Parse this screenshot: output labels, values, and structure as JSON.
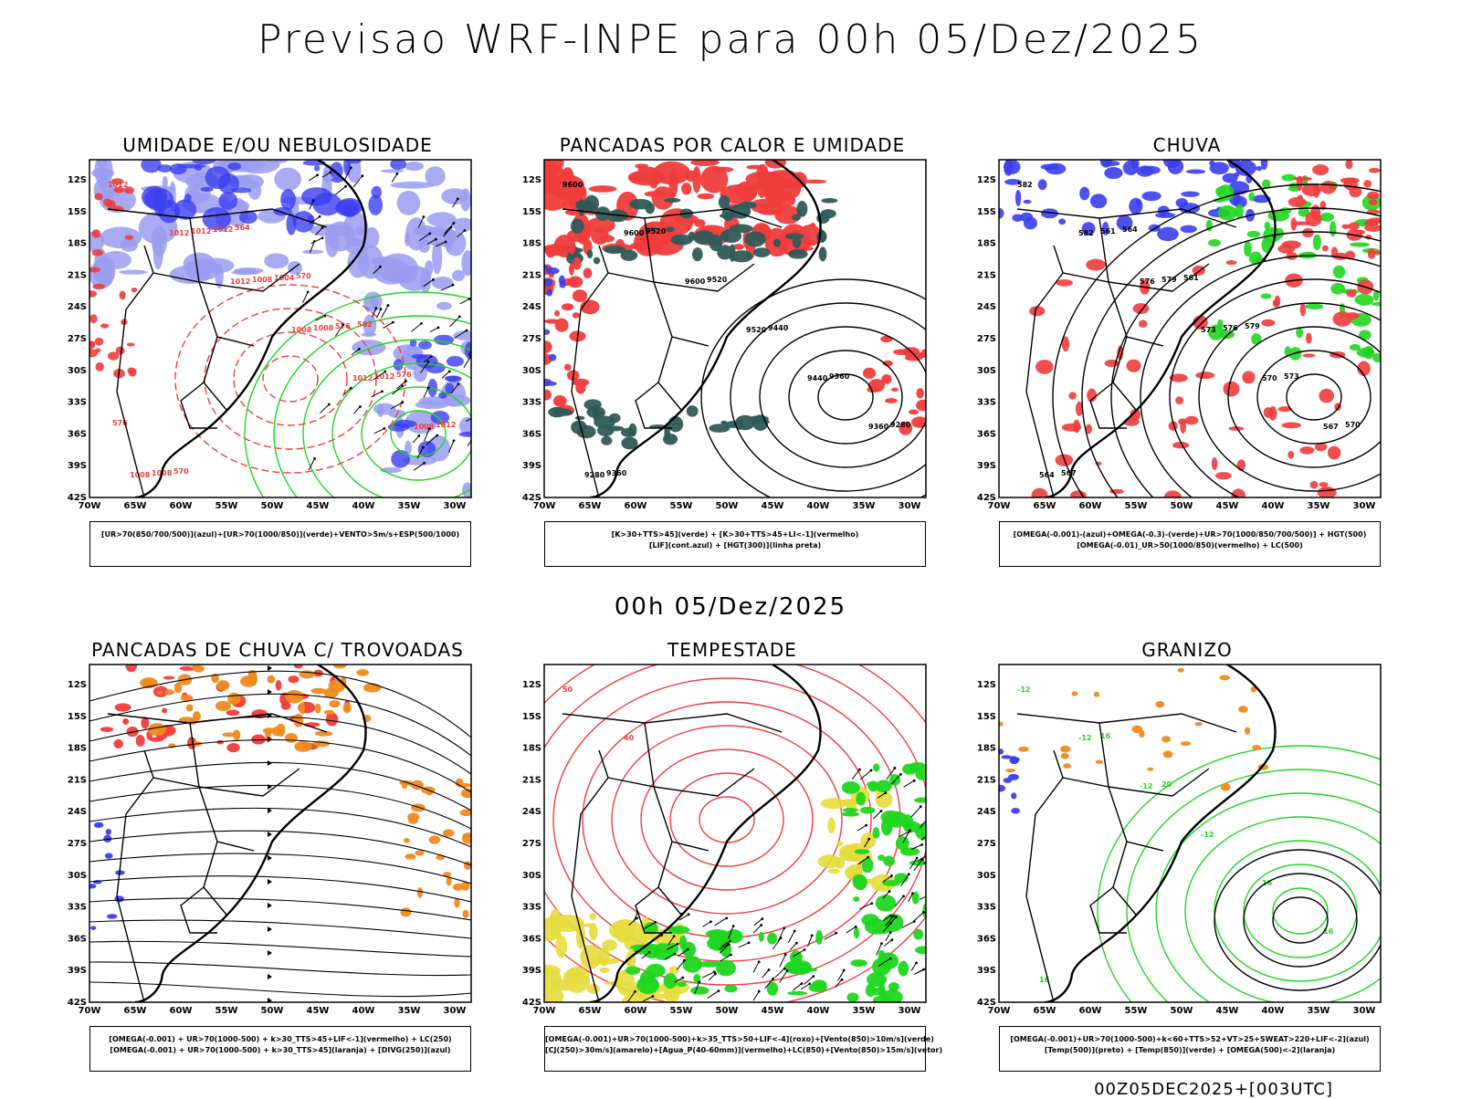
{
  "header": {
    "title": "Previsao WRF-INPE  para 00h 05/Dez/2025",
    "mid_time": "00h 05/Dez/2025",
    "stamp": "00Z05DEC2025+[003UTC]"
  },
  "axes": {
    "lat_labels": [
      "12S",
      "15S",
      "18S",
      "21S",
      "24S",
      "27S",
      "30S",
      "33S",
      "36S",
      "39S",
      "42S"
    ],
    "lon_labels": [
      "70W",
      "65W",
      "60W",
      "55W",
      "50W",
      "45W",
      "40W",
      "35W",
      "30W"
    ]
  },
  "colors": {
    "blue": "#3b3ef0",
    "lightblue": "#9a9cf0",
    "green": "#1fd61f",
    "red": "#f03c3c",
    "darkteal": "#2f5a58",
    "orange": "#f08a1e",
    "yellow": "#e6dc3c",
    "black": "#000000"
  },
  "panels": [
    {
      "id": "umidade",
      "title": "UMIDADE E/OU NEBULOSIDADE",
      "legend": [
        "[UR>70(850/700/500)](azul)+[UR>70(1000/850)](verde)+VENTO>5m/s+ESP(500/1000)"
      ],
      "contour_labels": [
        "1012",
        "1012",
        "1012",
        "1008",
        "1012",
        "1008",
        "1008",
        "1012",
        "1008",
        "1008",
        "1012",
        "1012",
        "1008",
        "1012",
        "1004",
        "576",
        "576",
        "576",
        "570",
        "564",
        "570",
        "582"
      ]
    },
    {
      "id": "pancadas-calor",
      "title": "PANCADAS POR CALOR E UMIDADE",
      "legend": [
        "[K>30+TTS>45](verde) + [K>30+TTS>45+LI<-1](vermelho)",
        "[LIF](cont.azul) + [HGT(300)](linha preta)"
      ],
      "contour_labels": [
        "9600",
        "9600",
        "9600",
        "9520",
        "9440",
        "9360",
        "9280",
        "9520",
        "9520",
        "9440",
        "9360",
        "9280",
        "9360"
      ]
    },
    {
      "id": "chuva",
      "title": "CHUVA",
      "legend": [
        "[OMEGA(-0.001)-(azul)+OMEGA(-0.3)-(verde)+UR>70(1000/850/700/500)] + HGT(500)",
        "[OMEGA(-0.01)_UR>50(1000/850)(vermelho) + LC(500)"
      ],
      "contour_labels": [
        "582",
        "582",
        "576",
        "573",
        "570",
        "567",
        "564",
        "561",
        "579",
        "576",
        "573",
        "570",
        "567",
        "564",
        "561",
        "579"
      ]
    },
    {
      "id": "pancadas-trovoadas",
      "title": "PANCADAS DE CHUVA C/ TROVOADAS",
      "legend": [
        "[OMEGA(-0.001) + UR>70(1000-500) + k>30_TTS>45+LIF<-1](vermelho) + LC(250)",
        "[OMEGA(-0.001) + UR>70(1000-500) + k>30_TTS>45](laranja) + [DIVG(250)](azul)"
      ],
      "contour_labels": []
    },
    {
      "id": "tempestade",
      "title": "TEMPESTADE",
      "legend": [
        "[OMEGA(-0.001)+UR>70(1000-500)+k>35_TTS>50+LIF<-4](roxo)+[Vento(850)>10m/s](verde)",
        "[CJ(250)>30m/s](amarelo)+[Agua_P(40-60mm)](vermelho)+LC(850)+[Vento(850)>15m/s](vetor)"
      ],
      "contour_labels": [
        "50",
        "40"
      ]
    },
    {
      "id": "granizo",
      "title": "GRANIZO",
      "legend": [
        "[OMEGA(-0.001)+UR>70(1000-500)+k<60+TTS>52+VT>25+SWEAT>220+LIF<-2](azul)",
        "[Temp(500)](preto) + [Temp(850)](verde) + [OMEGA(500)<-2](laranja)"
      ],
      "contour_labels": [
        "-12",
        "-12",
        "-12",
        "-12",
        "16",
        "16",
        "16",
        "16",
        "20"
      ]
    }
  ]
}
